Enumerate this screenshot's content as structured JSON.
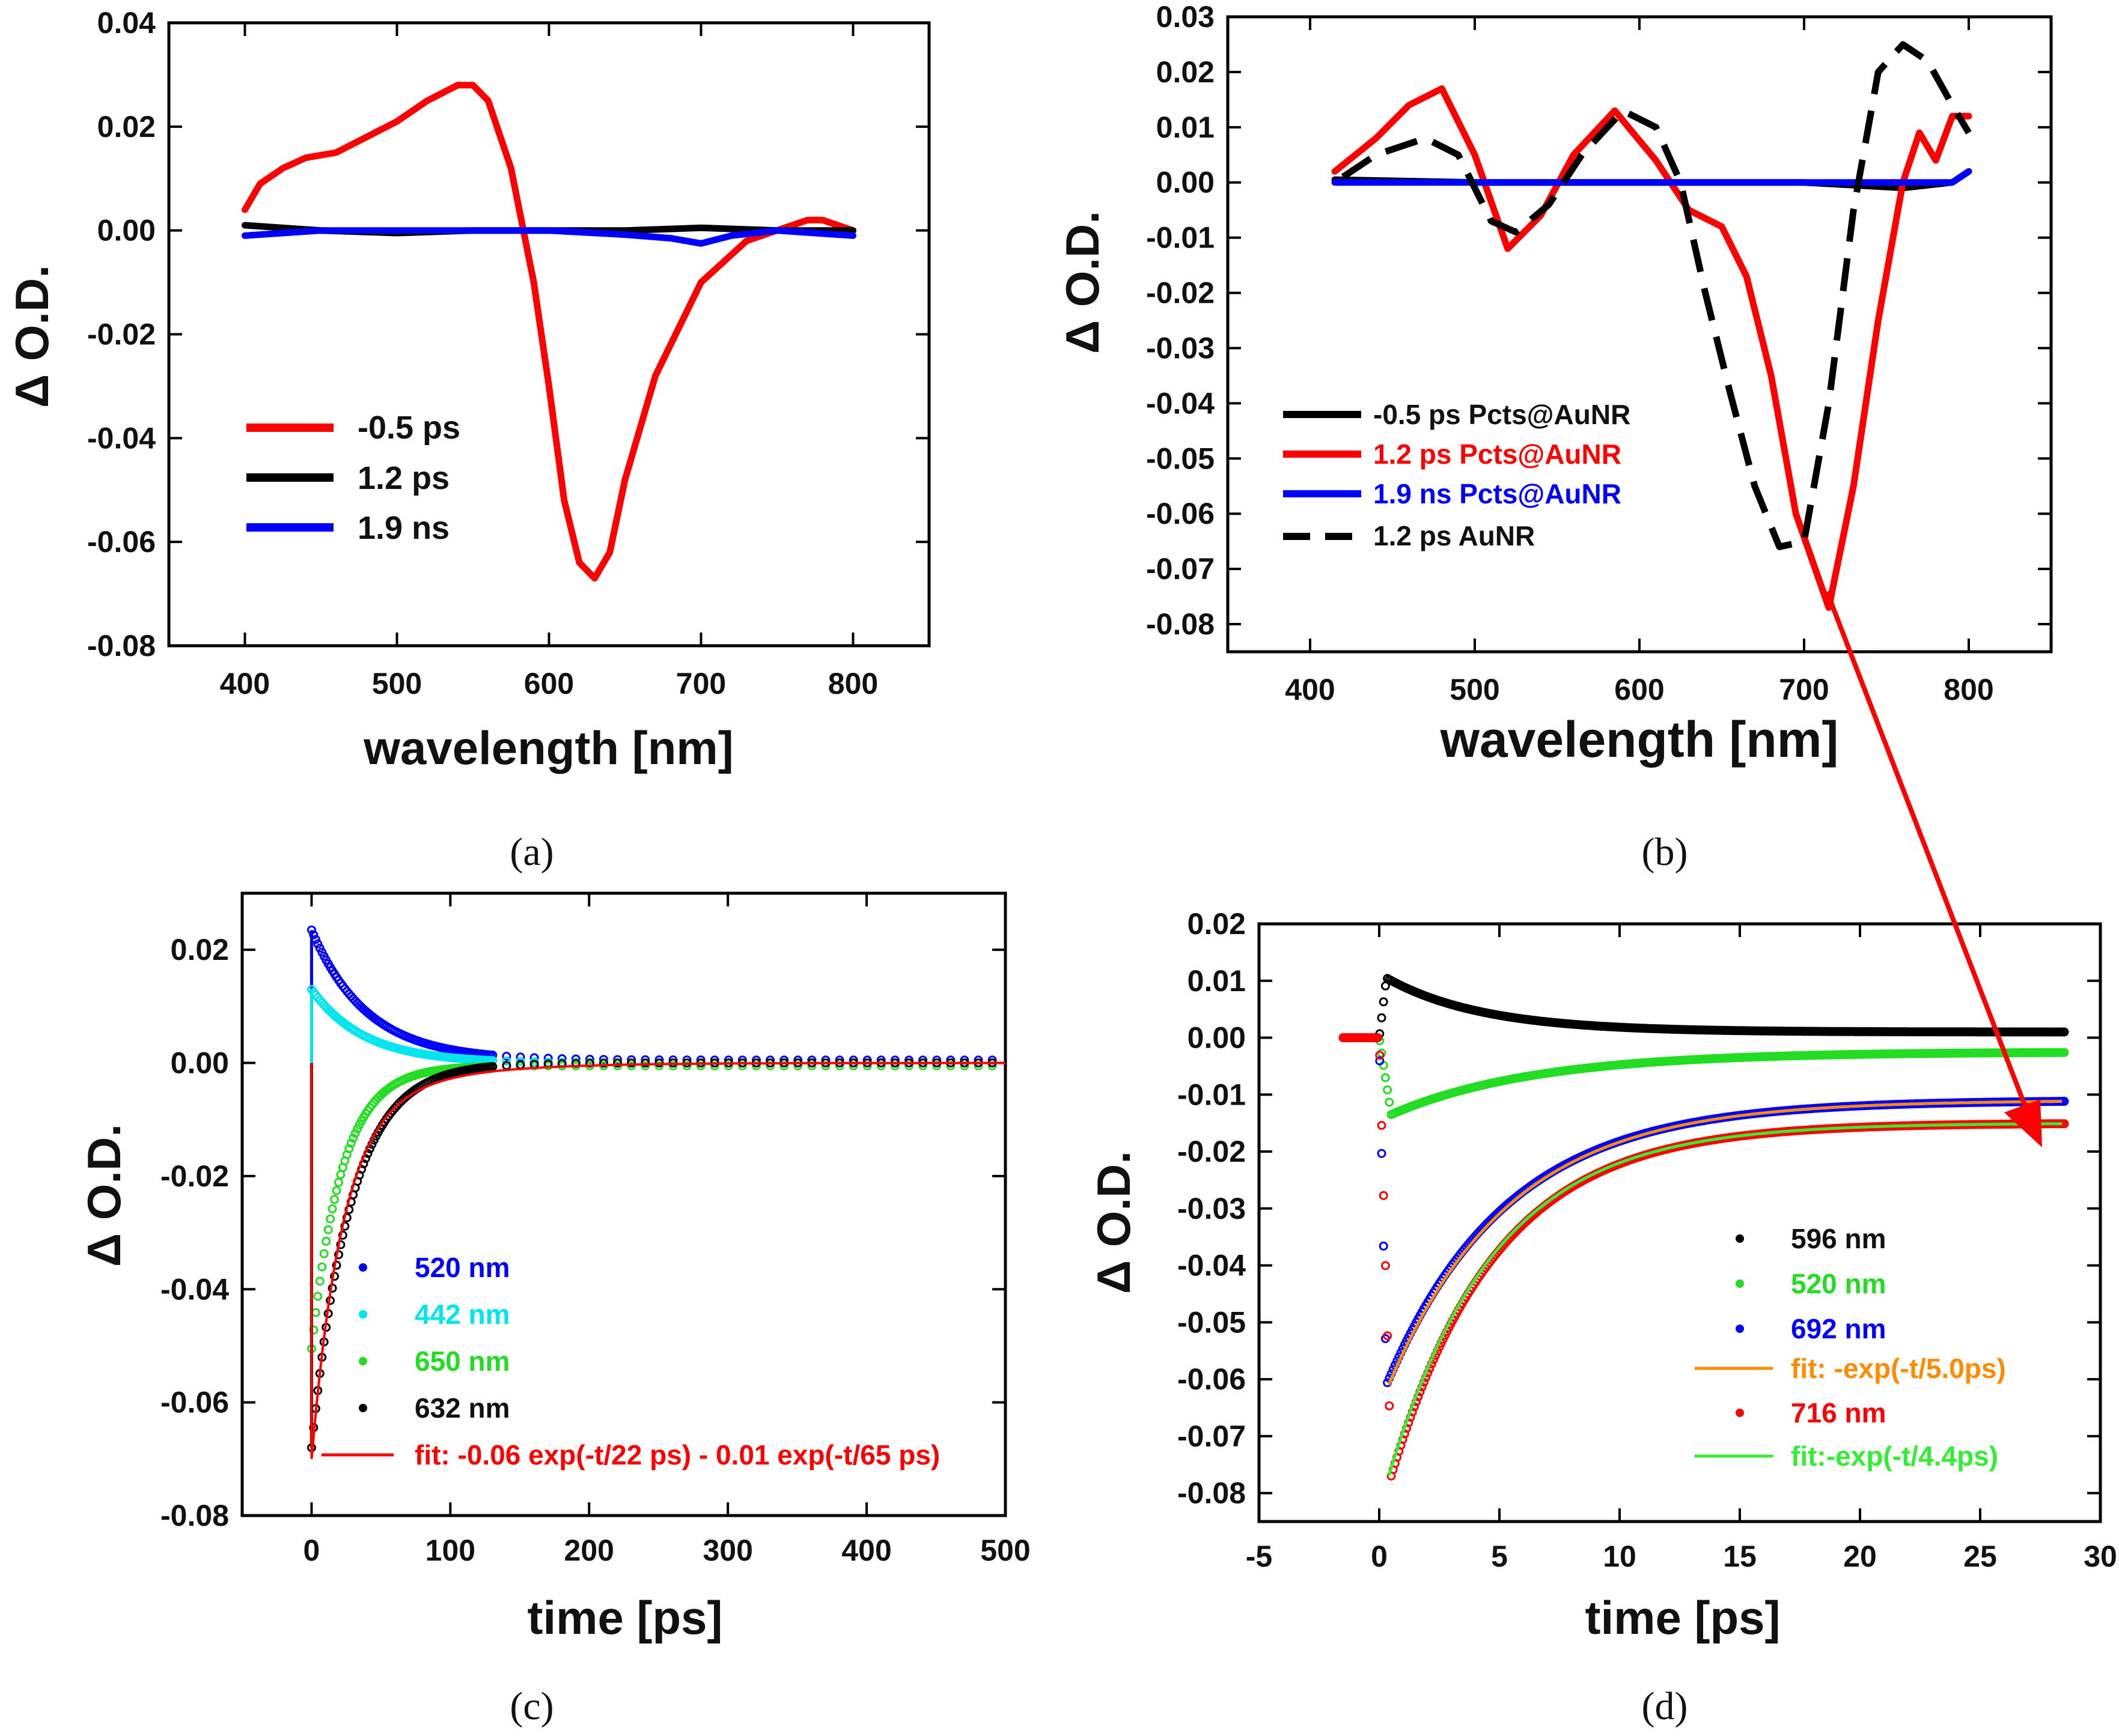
{
  "chart_data": [
    {
      "panel": "(a)",
      "type": "line",
      "xlabel": "wavelength [nm]",
      "ylabel": "Δ O.D.",
      "xlim": [
        350,
        850
      ],
      "ylim": [
        -0.08,
        0.04
      ],
      "xticks": [
        400,
        500,
        600,
        700,
        800
      ],
      "yticks": [
        0.04,
        0.02,
        0.0,
        -0.02,
        -0.04,
        -0.06,
        -0.08
      ],
      "xtick_labels": [
        "400",
        "500",
        "600",
        "700",
        "800"
      ],
      "ytick_labels": [
        "0.04",
        "0.02",
        "0.00",
        "-0.02",
        "-0.04",
        "-0.06",
        "-0.08"
      ],
      "legend_position": "middle-left",
      "series": [
        {
          "name": "-0.5 ps",
          "color": "#ff0000",
          "style": "solid",
          "x": [
            400,
            410,
            425,
            440,
            460,
            480,
            500,
            520,
            540,
            550,
            560,
            575,
            590,
            600,
            610,
            620,
            630,
            640,
            650,
            670,
            700,
            730,
            760,
            770,
            780,
            800
          ],
          "y": [
            0.004,
            0.009,
            0.012,
            0.014,
            0.015,
            0.018,
            0.021,
            0.025,
            0.028,
            0.028,
            0.025,
            0.012,
            -0.01,
            -0.03,
            -0.052,
            -0.064,
            -0.067,
            -0.062,
            -0.048,
            -0.028,
            -0.01,
            -0.002,
            0.001,
            0.002,
            0.002,
            0.0
          ]
        },
        {
          "name": "1.2 ps",
          "color": "#000000",
          "style": "solid",
          "x": [
            400,
            450,
            500,
            550,
            600,
            650,
            700,
            750,
            800
          ],
          "y": [
            0.001,
            0.0,
            -0.0005,
            0.0,
            0.0,
            0.0,
            0.0005,
            0.0,
            0.0
          ]
        },
        {
          "name": "1.9 ns",
          "color": "#0000ff",
          "style": "solid",
          "x": [
            400,
            450,
            500,
            550,
            600,
            650,
            680,
            700,
            720,
            750,
            800
          ],
          "y": [
            -0.001,
            0.0,
            0.0,
            0.0,
            0.0,
            -0.0008,
            -0.0015,
            -0.0025,
            -0.001,
            0.0,
            -0.001
          ]
        }
      ]
    },
    {
      "panel": "(b)",
      "type": "line",
      "xlabel": "wavelength [nm]",
      "ylabel": "Δ O.D.",
      "xlim": [
        350,
        850
      ],
      "ylim": [
        -0.085,
        0.03
      ],
      "xticks": [
        400,
        500,
        600,
        700,
        800
      ],
      "yticks": [
        0.03,
        0.02,
        0.01,
        0.0,
        -0.01,
        -0.02,
        -0.03,
        -0.04,
        -0.05,
        -0.06,
        -0.07,
        -0.08
      ],
      "xtick_labels": [
        "400",
        "500",
        "600",
        "700",
        "800"
      ],
      "ytick_labels": [
        "0.03",
        "0.02",
        "0.01",
        "0.00",
        "-0.01",
        "-0.02",
        "-0.03",
        "-0.04",
        "-0.05",
        "-0.06",
        "-0.07",
        "-0.08"
      ],
      "legend_position": "bottom-left",
      "series": [
        {
          "name": "-0.5 ps Pcts@AuNR",
          "color": "#000000",
          "style": "solid",
          "x": [
            415,
            500,
            600,
            700,
            760,
            790,
            800
          ],
          "y": [
            0.0005,
            0.0,
            0.0,
            0.0,
            -0.001,
            0.0,
            0.002
          ]
        },
        {
          "name": "1.2 ps Pcts@AuNR",
          "color": "#ff0000",
          "style": "solid",
          "x": [
            415,
            440,
            460,
            480,
            500,
            520,
            540,
            560,
            585,
            610,
            630,
            650,
            665,
            680,
            695,
            715,
            730,
            745,
            760,
            770,
            780,
            790,
            800
          ],
          "y": [
            0.002,
            0.008,
            0.014,
            0.017,
            0.005,
            -0.012,
            -0.006,
            0.005,
            0.013,
            0.004,
            -0.005,
            -0.008,
            -0.017,
            -0.035,
            -0.06,
            -0.077,
            -0.055,
            -0.025,
            0.0,
            0.009,
            0.004,
            0.012,
            0.012
          ]
        },
        {
          "name": "1.9 ns Pcts@AuNR",
          "color": "#0000ff",
          "style": "solid",
          "x": [
            415,
            500,
            600,
            700,
            760,
            790,
            800
          ],
          "y": [
            0.0,
            0.0,
            0.0,
            0.0,
            0.0,
            0.0,
            0.002
          ]
        },
        {
          "name": "1.2 ps AuNR",
          "color": "#000000",
          "style": "dashed",
          "x": [
            420,
            440,
            470,
            490,
            510,
            525,
            545,
            565,
            590,
            610,
            625,
            640,
            655,
            670,
            685,
            700,
            715,
            730,
            745,
            760,
            775,
            790,
            800
          ],
          "y": [
            0.001,
            0.005,
            0.008,
            0.005,
            -0.007,
            -0.009,
            -0.004,
            0.005,
            0.013,
            0.01,
            0.0,
            -0.02,
            -0.038,
            -0.055,
            -0.066,
            -0.065,
            -0.04,
            -0.005,
            0.02,
            0.025,
            0.022,
            0.014,
            0.009
          ]
        }
      ]
    },
    {
      "panel": "(c)",
      "type": "scatter",
      "xlabel": "time [ps]",
      "ylabel": "Δ O.D.",
      "xlim": [
        -50,
        500
      ],
      "ylim": [
        -0.08,
        0.03
      ],
      "xticks": [
        0,
        100,
        200,
        300,
        400,
        500
      ],
      "yticks": [
        0.02,
        0.0,
        -0.02,
        -0.04,
        -0.06,
        -0.08
      ],
      "xtick_labels": [
        "0",
        "100",
        "200",
        "300",
        "400",
        "500"
      ],
      "ytick_labels": [
        "0.02",
        "0.00",
        "-0.02",
        "-0.04",
        "-0.06",
        "-0.08"
      ],
      "legend_position": "bottom-center",
      "series": [
        {
          "name": "520 nm",
          "color": "#0000ff",
          "decay": {
            "amplitude": 0.023,
            "tau_ps": 40,
            "offset": 0.0005
          }
        },
        {
          "name": "442 nm",
          "color": "#00e5ee",
          "decay": {
            "amplitude": 0.013,
            "tau_ps": 38,
            "offset": 0.0
          }
        },
        {
          "name": "650 nm",
          "color": "#22dd22",
          "decay": {
            "amplitude": -0.05,
            "tau_ps": 22,
            "offset": -0.0005
          }
        },
        {
          "name": "632 nm",
          "color": "#000000",
          "decay": {
            "amplitude": -0.068,
            "tau_ps": 28,
            "offset": 0.0
          }
        },
        {
          "name": "fit: -0.06 exp(-t/22 ps) - 0.01 exp(-t/65 ps)",
          "color": "#ff0000",
          "style": "line",
          "fit": {
            "a1": -0.06,
            "tau1_ps": 22,
            "a2": -0.01,
            "tau2_ps": 65
          }
        }
      ]
    },
    {
      "panel": "(d)",
      "type": "scatter",
      "xlabel": "time [ps]",
      "ylabel": "Δ O.D.",
      "xlim": [
        -5,
        30
      ],
      "ylim": [
        -0.085,
        0.02
      ],
      "xticks": [
        -5,
        0,
        5,
        10,
        15,
        20,
        25,
        30
      ],
      "yticks": [
        0.02,
        0.01,
        0.0,
        -0.01,
        -0.02,
        -0.03,
        -0.04,
        -0.05,
        -0.06,
        -0.07,
        -0.08
      ],
      "xtick_labels": [
        "-5",
        "0",
        "5",
        "10",
        "15",
        "20",
        "25",
        "30"
      ],
      "ytick_labels": [
        "0.02",
        "0.01",
        "0.00",
        "-0.01",
        "-0.02",
        "-0.03",
        "-0.04",
        "-0.05",
        "-0.06",
        "-0.07",
        "-0.08"
      ],
      "legend_position": "bottom-right",
      "series": [
        {
          "name": "596 nm",
          "color": "#000000",
          "peak_time_ps": 0.3,
          "decay": {
            "amplitude": 0.0095,
            "tau_ps": 4.0,
            "offset": 0.001
          }
        },
        {
          "name": "520 nm",
          "color": "#22dd22",
          "peak_time_ps": 0.5,
          "decay": {
            "amplitude": -0.011,
            "tau_ps": 6.0,
            "offset": -0.0025
          }
        },
        {
          "name": "692 nm",
          "color": "#0000ff",
          "peak_time_ps": 0.3,
          "decay": {
            "amplitude": -0.05,
            "tau_ps": 5.0,
            "offset": -0.011
          }
        },
        {
          "name": "fit: -exp(-t/5.0ps)",
          "color": "#ff8c00",
          "style": "line",
          "fit": {
            "amplitude": -0.05,
            "tau_ps": 5.0,
            "offset": -0.011
          }
        },
        {
          "name": "716 nm",
          "color": "#ff0000",
          "peak_time_ps": 0.5,
          "decay": {
            "amplitude": -0.062,
            "tau_ps": 4.4,
            "offset": -0.015
          }
        },
        {
          "name": "fit:-exp(-t/4.4ps)",
          "color": "#33ee33",
          "style": "line",
          "fit": {
            "amplitude": -0.062,
            "tau_ps": 4.4,
            "offset": -0.015
          }
        }
      ]
    }
  ],
  "panel_labels": {
    "a": "(a)",
    "b": "(b)",
    "c": "(c)",
    "d": "(d)"
  },
  "annotation": {
    "type": "arrow",
    "color": "#ff0000",
    "from": "panel (b) 1.2 ps Pcts@AuNR minimum near 716 nm",
    "to": "panel (d) 716 nm trace end near 28 ps"
  }
}
